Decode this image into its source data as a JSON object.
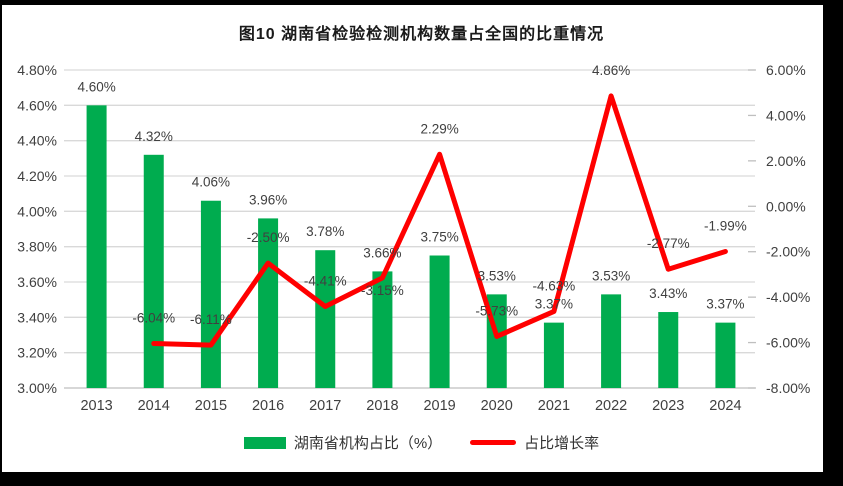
{
  "title": "图10  湖南省检验检测机构数量占全国的比重情况",
  "colors": {
    "bar": "#00AC4F",
    "line": "#FF0000",
    "grid": "#D9D9D9",
    "axis_line": "#BFBFBF",
    "axis_text": "#404040",
    "data_label_text": "#404040",
    "title_text": "#1A1A1A",
    "background": "#FFFFFF",
    "frame": "#000000"
  },
  "legend": {
    "items": [
      {
        "label": "湖南省机构占比（%）",
        "type": "bar"
      },
      {
        "label": "占比增长率",
        "type": "line"
      }
    ]
  },
  "chart_data": {
    "type": "bar+line",
    "categories": [
      "2013",
      "2014",
      "2015",
      "2016",
      "2017",
      "2018",
      "2019",
      "2020",
      "2021",
      "2022",
      "2023",
      "2024"
    ],
    "series": [
      {
        "name": "湖南省机构占比（%）",
        "type": "bar",
        "axis": "left",
        "values": [
          4.6,
          4.32,
          4.06,
          3.96,
          3.78,
          3.66,
          3.75,
          3.53,
          3.37,
          3.53,
          3.43,
          3.37
        ],
        "labels": [
          "4.60%",
          "4.32%",
          "4.06%",
          "3.96%",
          "3.78%",
          "3.66%",
          "3.75%",
          "3.53%",
          "3.37%",
          "3.53%",
          "3.43%",
          "3.37%"
        ]
      },
      {
        "name": "占比增长率",
        "type": "line",
        "axis": "right",
        "values": [
          null,
          -6.04,
          -6.11,
          -2.5,
          -4.41,
          -3.15,
          2.29,
          -5.73,
          -4.63,
          4.86,
          -2.77,
          -1.99
        ],
        "labels": [
          null,
          "-6.04%",
          "-6.11%",
          "-2.50%",
          "-4.41%",
          "-3.15%",
          "2.29%",
          "-5.73%",
          "-4.63%",
          "4.86%",
          "-2.77%",
          "-1.99%"
        ],
        "label_side": [
          null,
          "above",
          "above",
          "above",
          "above",
          "below",
          "above",
          "above",
          "above",
          "above",
          "above",
          "above"
        ]
      }
    ],
    "left_axis": {
      "min": 3.0,
      "max": 4.8,
      "tick_labels": [
        "4.80%",
        "4.60%",
        "4.40%",
        "4.20%",
        "4.00%",
        "3.80%",
        "3.60%",
        "3.40%",
        "3.20%",
        "3.00%"
      ]
    },
    "right_axis": {
      "min": -8.0,
      "max": 6.0,
      "tick_labels": [
        "6.00%",
        "4.00%",
        "2.00%",
        "0.00%",
        "-2.00%",
        "-4.00%",
        "-6.00%",
        "-8.00%"
      ]
    },
    "grid": true,
    "legend_position": "bottom",
    "title": "图10  湖南省检验检测机构数量占全国的比重情况"
  }
}
